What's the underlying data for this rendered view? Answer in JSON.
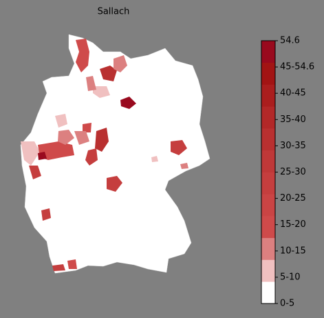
{
  "title": "Sallach",
  "colorbar": {
    "labels": [
      "0-5",
      "5-10",
      "10-15",
      "15-20",
      "20-25",
      "25-30",
      "30-35",
      "35-40",
      "40-45",
      "45-54.6",
      "54.6"
    ],
    "colors": [
      "#ffffff",
      "#f0c0c0",
      "#dc8080",
      "#cf4a4a",
      "#ca4444",
      "#c53e3e",
      "#bf3838",
      "#b93030",
      "#b22828",
      "#aa1e1e",
      "#a21414",
      "#990a1e"
    ]
  }
}
